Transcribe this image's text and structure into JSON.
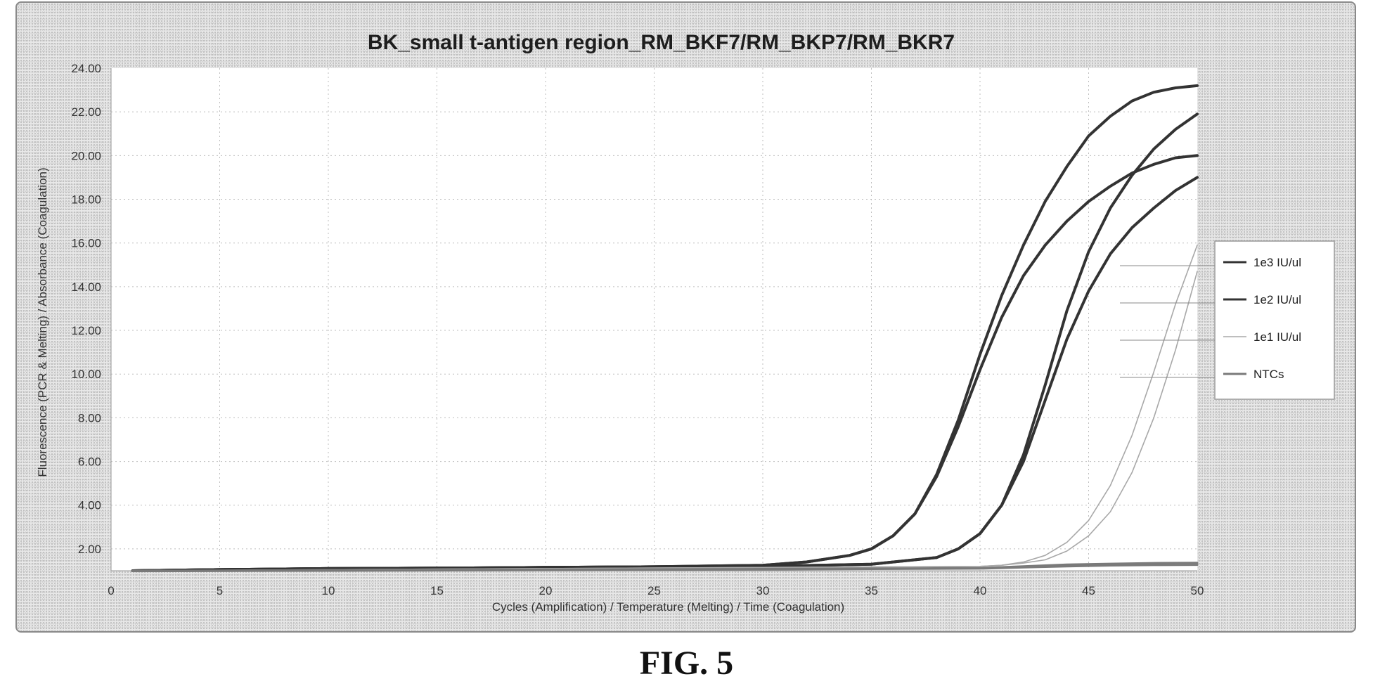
{
  "chart_data": {
    "type": "line",
    "title": "BK_small t-antigen region_RM_BKF7/RM_BKP7/RM_BKR7",
    "xlabel": "Cycles (Amplification) / Temperature (Melting) / Time (Coagulation)",
    "ylabel": "Fluorescence (PCR & Melting) / Absorbance (Coagulation)",
    "xlim": [
      0,
      50
    ],
    "ylim": [
      1,
      24
    ],
    "x_ticks": [
      "0",
      "5",
      "10",
      "15",
      "20",
      "25",
      "30",
      "35",
      "40",
      "45",
      "50"
    ],
    "x_tick_values": [
      0,
      5,
      10,
      15,
      20,
      25,
      30,
      35,
      40,
      45,
      50
    ],
    "y_ticks": [
      "2.00",
      "4.00",
      "6.00",
      "8.00",
      "10.00",
      "12.00",
      "14.00",
      "16.00",
      "18.00",
      "20.00",
      "22.00",
      "24.00"
    ],
    "y_tick_values": [
      2,
      4,
      6,
      8,
      10,
      12,
      14,
      16,
      18,
      20,
      22,
      24
    ],
    "grid": true,
    "legend_position": "right",
    "legend": [
      "1e3 IU/ul",
      "1e2 IU/ul",
      "1e1 IU/ul",
      "NTCs"
    ],
    "colors": {
      "1e3 IU/ul": "#333333",
      "1e2 IU/ul": "#333333",
      "1e1 IU/ul": "#a8a8a8",
      "NTCs": "#7a7a7a"
    },
    "series": [
      {
        "name": "1e3 IU/ul",
        "group": "1e3 IU/ul",
        "x": [
          1,
          5,
          10,
          15,
          20,
          25,
          30,
          32,
          34,
          35,
          36,
          37,
          38,
          39,
          40,
          41,
          42,
          43,
          44,
          45,
          46,
          47,
          48,
          49,
          50
        ],
        "y": [
          1.0,
          1.05,
          1.1,
          1.12,
          1.15,
          1.18,
          1.25,
          1.4,
          1.7,
          2.0,
          2.6,
          3.6,
          5.4,
          7.9,
          10.9,
          13.6,
          15.9,
          17.9,
          19.5,
          20.9,
          21.8,
          22.5,
          22.9,
          23.1,
          23.2
        ]
      },
      {
        "name": "1e3 IU/ul",
        "group": "1e3 IU/ul",
        "x": [
          1,
          5,
          10,
          15,
          20,
          25,
          30,
          32,
          34,
          35,
          36,
          37,
          38,
          39,
          40,
          41,
          42,
          43,
          44,
          45,
          46,
          47,
          48,
          49,
          50
        ],
        "y": [
          1.0,
          1.05,
          1.1,
          1.12,
          1.15,
          1.18,
          1.25,
          1.4,
          1.7,
          2.0,
          2.6,
          3.6,
          5.3,
          7.6,
          10.2,
          12.6,
          14.5,
          15.9,
          17.0,
          17.9,
          18.6,
          19.2,
          19.6,
          19.9,
          20.0
        ]
      },
      {
        "name": "1e2 IU/ul",
        "group": "1e2 IU/ul",
        "x": [
          1,
          5,
          10,
          15,
          20,
          25,
          30,
          35,
          38,
          39,
          40,
          41,
          42,
          43,
          44,
          45,
          46,
          47,
          48,
          49,
          50
        ],
        "y": [
          1.0,
          1.05,
          1.1,
          1.12,
          1.15,
          1.18,
          1.2,
          1.3,
          1.6,
          2.0,
          2.7,
          4.0,
          6.3,
          9.5,
          12.9,
          15.6,
          17.6,
          19.1,
          20.3,
          21.2,
          21.9
        ]
      },
      {
        "name": "1e2 IU/ul",
        "group": "1e2 IU/ul",
        "x": [
          1,
          5,
          10,
          15,
          20,
          25,
          30,
          35,
          38,
          39,
          40,
          41,
          42,
          43,
          44,
          45,
          46,
          47,
          48,
          49,
          50
        ],
        "y": [
          1.0,
          1.05,
          1.1,
          1.12,
          1.15,
          1.18,
          1.2,
          1.3,
          1.6,
          2.0,
          2.7,
          4.0,
          6.0,
          8.8,
          11.6,
          13.8,
          15.5,
          16.7,
          17.6,
          18.4,
          19.0
        ]
      },
      {
        "name": "1e1 IU/ul",
        "group": "1e1 IU/ul",
        "x": [
          1,
          10,
          20,
          30,
          40,
          41,
          42,
          43,
          44,
          45,
          46,
          47,
          48,
          49,
          50
        ],
        "y": [
          1.0,
          1.05,
          1.1,
          1.15,
          1.2,
          1.25,
          1.4,
          1.7,
          2.3,
          3.3,
          4.9,
          7.2,
          10.1,
          13.2,
          15.9
        ]
      },
      {
        "name": "1e1 IU/ul",
        "group": "1e1 IU/ul",
        "x": [
          1,
          10,
          20,
          30,
          40,
          41,
          42,
          43,
          44,
          45,
          46,
          47,
          48,
          49,
          50
        ],
        "y": [
          1.0,
          1.05,
          1.1,
          1.15,
          1.2,
          1.25,
          1.35,
          1.5,
          1.9,
          2.6,
          3.7,
          5.5,
          8.0,
          11.1,
          14.7
        ]
      },
      {
        "name": "NTCs",
        "group": "NTCs",
        "x": [
          1,
          10,
          20,
          30,
          40,
          42,
          44,
          46,
          48,
          50
        ],
        "y": [
          1.0,
          1.02,
          1.05,
          1.08,
          1.12,
          1.2,
          1.28,
          1.32,
          1.35,
          1.36
        ]
      },
      {
        "name": "NTCs",
        "group": "NTCs",
        "x": [
          1,
          10,
          20,
          30,
          40,
          42,
          44,
          46,
          48,
          50
        ],
        "y": [
          0.98,
          1.0,
          1.03,
          1.06,
          1.1,
          1.15,
          1.2,
          1.24,
          1.26,
          1.27
        ]
      }
    ]
  },
  "figure": {
    "caption": "FIG. 5"
  }
}
